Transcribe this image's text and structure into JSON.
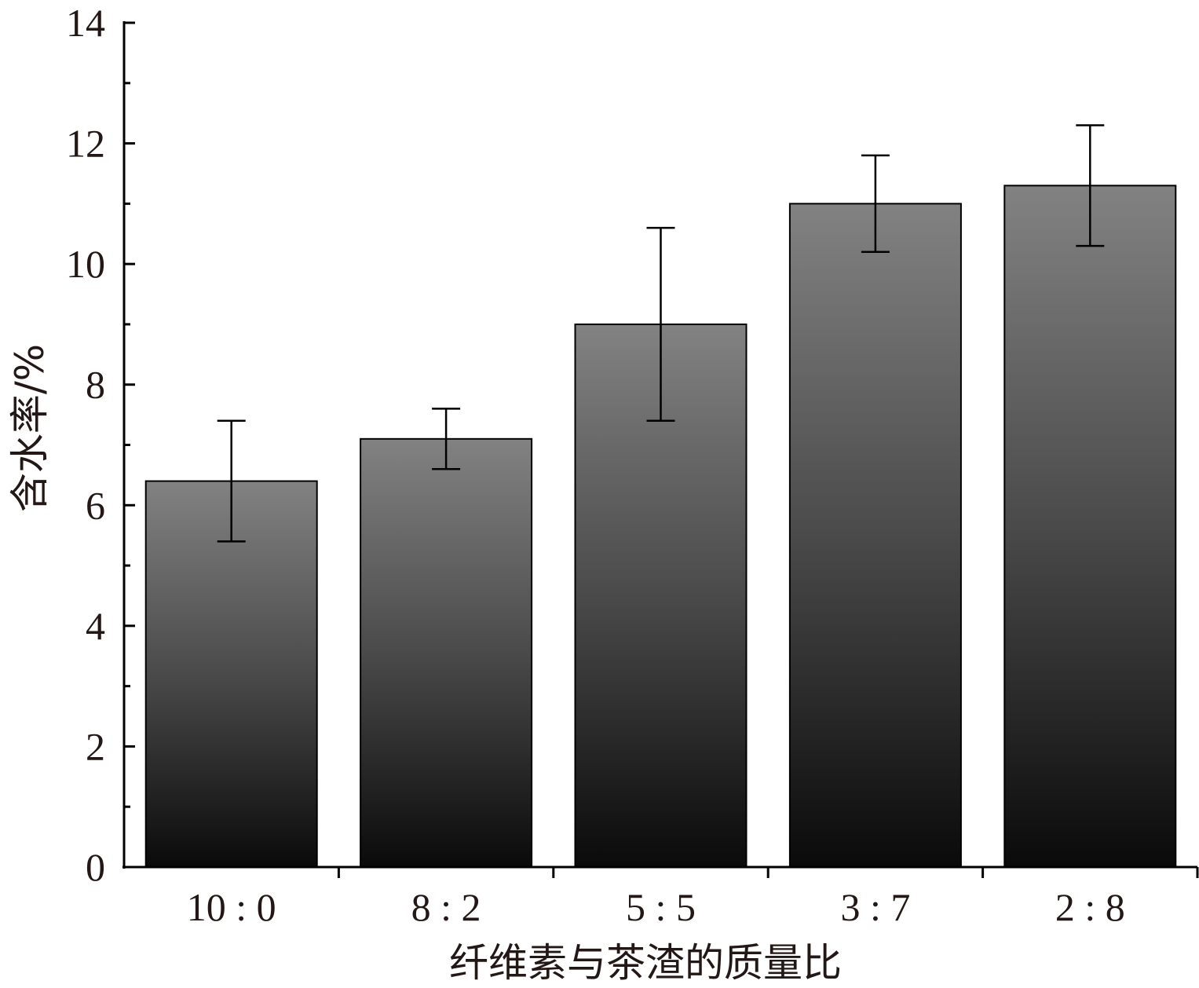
{
  "chart_data": {
    "type": "bar",
    "title": "",
    "xlabel": "纤维素与茶渣的质量比",
    "ylabel": "含水率/%",
    "categories": [
      "10 : 0",
      "8 : 2",
      "5 : 5",
      "3 : 7",
      "2 : 8"
    ],
    "values": [
      6.4,
      7.1,
      9.0,
      11.0,
      11.3
    ],
    "errors": [
      1.0,
      0.5,
      1.6,
      0.8,
      1.0
    ],
    "ylim": [
      0,
      14
    ],
    "yticks": [
      0,
      2,
      4,
      6,
      8,
      10,
      12,
      14
    ],
    "grid": false,
    "legend": "none",
    "colors": {
      "bar_top": "#828282",
      "bar_mid": "#4a4a4a",
      "bar_bottom": "#0a0a0a",
      "axis": "#000000",
      "text": "#231815"
    }
  }
}
